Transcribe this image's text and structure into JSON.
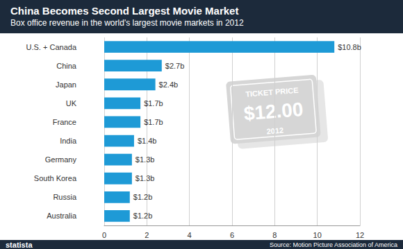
{
  "chart_data": {
    "type": "bar",
    "orientation": "horizontal",
    "title": "China Becomes Second Largest Movie Market",
    "subtitle": "Box office revenue in the world's largest movie markets in 2012",
    "categories": [
      "U.S. + Canada",
      "China",
      "Japan",
      "UK",
      "France",
      "India",
      "Germany",
      "South Korea",
      "Russia",
      "Australia"
    ],
    "values": [
      10.8,
      2.7,
      2.4,
      1.7,
      1.7,
      1.4,
      1.3,
      1.3,
      1.2,
      1.2
    ],
    "value_labels": [
      "$10.8b",
      "$2.7b",
      "$2.4b",
      "$1.7b",
      "$1.7b",
      "$1.4b",
      "$1.3b",
      "$1.3b",
      "$1.2b",
      "$1.2b"
    ],
    "data_labels": true,
    "color": "#1e9ad6",
    "xlim": [
      0,
      12
    ],
    "xticks": [
      0,
      2,
      4,
      6,
      8,
      10,
      12
    ],
    "grid": true,
    "annotations": [
      "TICKET PRICE",
      "$12.00",
      "2012"
    ],
    "brand": "statista",
    "source": "Source: Motion Picture Association of America"
  }
}
